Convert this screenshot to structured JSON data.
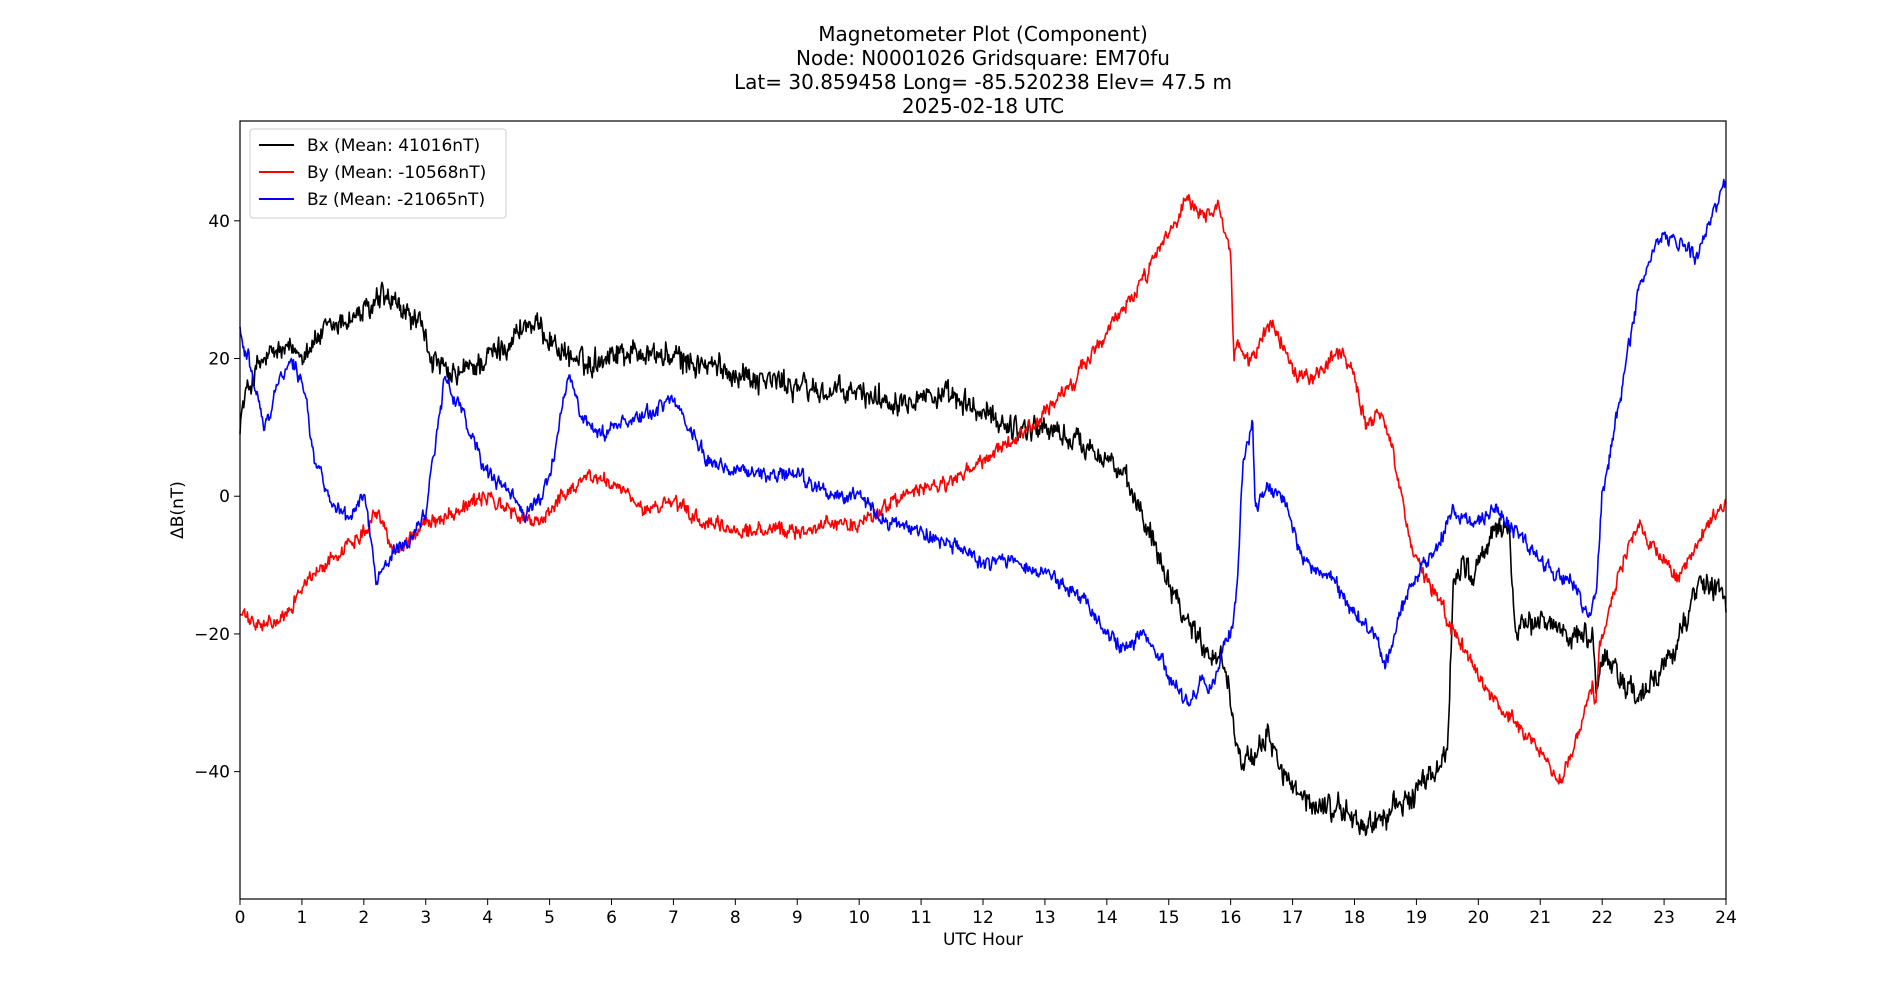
{
  "chart_data": {
    "type": "line",
    "title": [
      "Magnetometer Plot (Component)",
      "Node:  N0001026     Gridsquare:  EM70fu",
      "Lat= 30.859458    Long= -85.520238    Elev= 47.5 m",
      "2025-02-18  UTC"
    ],
    "xlabel": "UTC Hour",
    "ylabel": "ΔB(nT)",
    "xlim": [
      0,
      24
    ],
    "ylim": [
      -58.5,
      54.5
    ],
    "xticks": [
      0,
      1,
      2,
      3,
      4,
      5,
      6,
      7,
      8,
      9,
      10,
      11,
      12,
      13,
      14,
      15,
      16,
      17,
      18,
      19,
      20,
      21,
      22,
      23,
      24
    ],
    "xtick_labels": [
      "0",
      "1",
      "2",
      "3",
      "4",
      "5",
      "6",
      "7",
      "8",
      "9",
      "10",
      "11",
      "12",
      "13",
      "14",
      "15",
      "16",
      "17",
      "18",
      "19",
      "20",
      "21",
      "22",
      "23",
      "24"
    ],
    "yticks": [
      -40,
      -20,
      0,
      20,
      40
    ],
    "ytick_labels": [
      "−40",
      "−20",
      "0",
      "20",
      "40"
    ],
    "grid": false,
    "legend_position": "top-left",
    "series": [
      {
        "name": "Bx (Mean: 41016nT)",
        "color": "#000000",
        "noise": 2.6,
        "x": [
          0,
          0.1,
          0.3,
          0.6,
          1.0,
          1.4,
          1.8,
          2.1,
          2.3,
          2.6,
          2.9,
          3.1,
          3.4,
          3.8,
          4.3,
          4.6,
          4.9,
          5.2,
          5.6,
          6.0,
          6.5,
          7.0,
          7.5,
          8.0,
          8.5,
          9.0,
          9.5,
          10.0,
          10.5,
          11.0,
          11.5,
          12.0,
          12.5,
          13.0,
          13.5,
          14.0,
          14.3,
          14.7,
          15.0,
          15.3,
          15.6,
          15.9,
          16.05,
          16.2,
          16.4,
          16.6,
          16.8,
          17.0,
          17.3,
          17.6,
          17.9,
          18.1,
          18.4,
          18.7,
          19.0,
          19.3,
          19.5,
          19.6,
          19.75,
          19.9,
          20.1,
          20.3,
          20.5,
          20.6,
          20.8,
          21.0,
          21.3,
          21.6,
          21.85,
          21.9,
          22.0,
          22.3,
          22.6,
          22.9,
          23.2,
          23.4,
          23.6,
          23.8,
          24.0
        ],
        "y": [
          11,
          15,
          19,
          21,
          21,
          24,
          26,
          27,
          29,
          27,
          25,
          20,
          17,
          19,
          22,
          25,
          24,
          21,
          19,
          21,
          21,
          20,
          19,
          18,
          17,
          16,
          15,
          15,
          14,
          15,
          14,
          12,
          10,
          10,
          8,
          6,
          2,
          -5,
          -12,
          -18,
          -22,
          -24,
          -33,
          -38,
          -39,
          -34,
          -39,
          -43,
          -45,
          -45,
          -46,
          -48,
          -47,
          -45,
          -43,
          -40,
          -37,
          -12,
          -9,
          -12,
          -8,
          -5,
          -4,
          -20,
          -19,
          -18,
          -19,
          -20,
          -21,
          -28,
          -23,
          -26,
          -30,
          -26,
          -21,
          -17,
          -12,
          -13,
          -15
        ]
      },
      {
        "name": "By (Mean: -10568nT)",
        "color": "#ff0000",
        "noise": 1.5,
        "x": [
          0,
          0.3,
          0.7,
          1.0,
          1.5,
          2.0,
          2.2,
          2.5,
          3.0,
          3.5,
          4.0,
          4.5,
          4.8,
          5.2,
          5.6,
          6.0,
          6.5,
          7.0,
          7.5,
          8.0,
          8.5,
          9.0,
          9.5,
          10.0,
          10.5,
          11.0,
          11.5,
          12.0,
          12.5,
          13.0,
          13.5,
          14.0,
          14.5,
          15.0,
          15.3,
          15.6,
          15.8,
          16.0,
          16.05,
          16.1,
          16.3,
          16.5,
          16.7,
          17.0,
          17.3,
          17.6,
          17.8,
          18.0,
          18.2,
          18.4,
          18.6,
          18.8,
          19.0,
          19.3,
          19.6,
          19.9,
          20.2,
          20.6,
          21.0,
          21.3,
          21.6,
          21.85,
          21.9,
          21.95,
          22.1,
          22.3,
          22.6,
          22.9,
          23.2,
          23.5,
          23.8,
          24.0
        ],
        "y": [
          -17,
          -19,
          -18,
          -13,
          -9,
          -5,
          -2,
          -8,
          -4,
          -2,
          0,
          -3,
          -4,
          0,
          3,
          2,
          -2,
          -1,
          -4,
          -5,
          -5,
          -5,
          -4,
          -4,
          -1,
          1,
          2,
          5,
          8,
          12,
          17,
          24,
          30,
          38,
          43,
          40,
          42,
          35,
          20,
          23,
          19,
          23,
          25,
          18,
          17,
          20,
          21,
          17,
          10,
          12,
          7,
          -2,
          -9,
          -14,
          -20,
          -24,
          -29,
          -33,
          -37,
          -42,
          -35,
          -27,
          -30,
          -22,
          -17,
          -10,
          -4,
          -8,
          -12,
          -8,
          -3,
          -1
        ]
      },
      {
        "name": "Bz (Mean: -21065nT)",
        "color": "#0000ff",
        "noise": 1.5,
        "x": [
          0,
          0.2,
          0.4,
          0.6,
          0.8,
          1.0,
          1.2,
          1.5,
          1.8,
          2.0,
          2.2,
          2.5,
          2.8,
          3.0,
          3.3,
          3.6,
          4.0,
          4.3,
          4.6,
          5.0,
          5.3,
          5.5,
          5.8,
          6.2,
          6.6,
          7.0,
          7.3,
          7.6,
          8.0,
          8.5,
          9.0,
          9.5,
          10.0,
          10.5,
          11.0,
          11.5,
          12.0,
          12.5,
          13.0,
          13.5,
          14.0,
          14.3,
          14.6,
          15.0,
          15.3,
          15.5,
          15.7,
          15.9,
          16.0,
          16.1,
          16.2,
          16.3,
          16.35,
          16.4,
          16.5,
          16.7,
          16.9,
          17.1,
          17.4,
          17.7,
          18.0,
          18.3,
          18.5,
          18.7,
          19.0,
          19.3,
          19.6,
          19.9,
          20.1,
          20.3,
          20.6,
          20.9,
          21.2,
          21.5,
          21.8,
          21.9,
          22.0,
          22.2,
          22.4,
          22.6,
          22.8,
          23.0,
          23.3,
          23.5,
          23.7,
          23.9,
          24.0
        ],
        "y": [
          24,
          18,
          10,
          16,
          20,
          17,
          6,
          -2,
          -3,
          1,
          -12,
          -8,
          -6,
          -2,
          17,
          12,
          3,
          1,
          -3,
          2,
          18,
          12,
          9,
          11,
          12,
          14,
          9,
          5,
          4,
          3,
          3,
          0,
          0,
          -4,
          -5,
          -7,
          -10,
          -9,
          -11,
          -14,
          -20,
          -22,
          -20,
          -26,
          -30,
          -27,
          -28,
          -22,
          -20,
          -14,
          5,
          8,
          12,
          -2,
          0,
          1,
          -1,
          -8,
          -11,
          -13,
          -17,
          -20,
          -25,
          -18,
          -11,
          -8,
          -2,
          -4,
          -3,
          -2,
          -5,
          -8,
          -11,
          -12,
          -18,
          -14,
          0,
          10,
          20,
          30,
          35,
          38,
          37,
          35,
          39,
          44,
          46
        ]
      }
    ]
  }
}
